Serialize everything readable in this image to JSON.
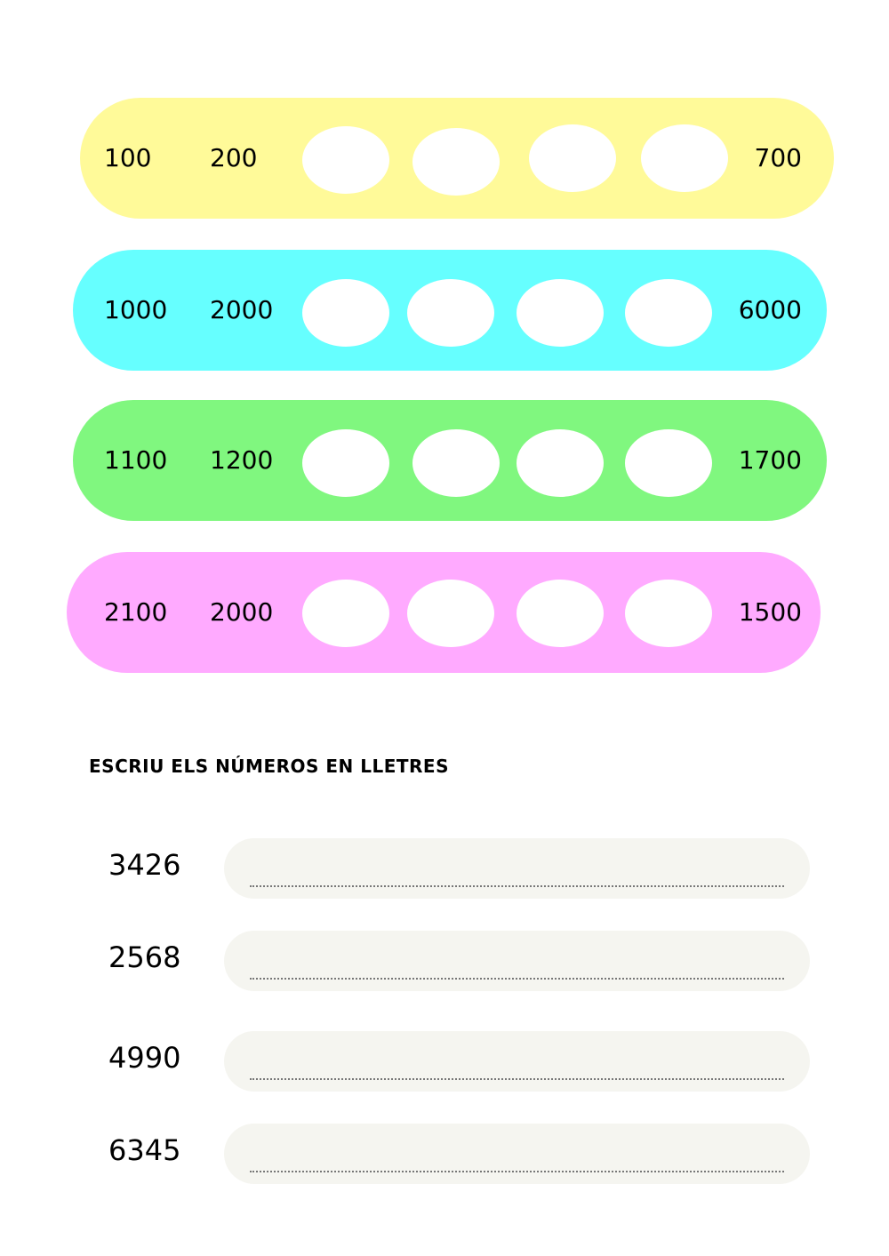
{
  "sequences": [
    {
      "color": "#fffa99",
      "values": [
        "100",
        "200",
        "700"
      ]
    },
    {
      "color": "#66ffff",
      "values": [
        "1000",
        "2000",
        "6000"
      ]
    },
    {
      "color": "#80f77f",
      "values": [
        "1100",
        "1200",
        "1700"
      ]
    },
    {
      "color": "#ffaaff",
      "values": [
        "2100",
        "2000",
        "1500"
      ]
    }
  ],
  "writing": {
    "heading": "ESCRIU ELS NÚMEROS EN LLETRES",
    "numbers": [
      "3426",
      "2568",
      "4990",
      "6345"
    ]
  }
}
